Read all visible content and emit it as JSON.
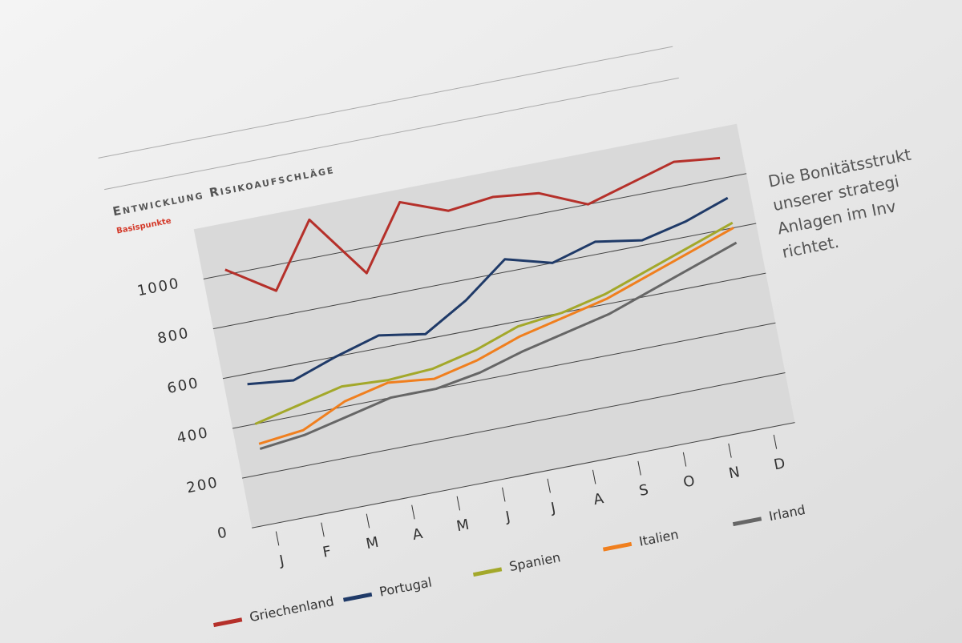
{
  "chart_data": {
    "type": "line",
    "title": "Entwicklung Risikoaufschläge",
    "subtitle": "Basispunkte",
    "categories": [
      "J",
      "F",
      "M",
      "A",
      "M",
      "J",
      "J",
      "A",
      "S",
      "O",
      "N",
      "D"
    ],
    "series": [
      {
        "name": "Griechenland",
        "color": "#b5302a",
        "values": [
          1020,
          900,
          1150,
          900,
          1150,
          1080,
          1100,
          1080,
          1000,
          1050,
          1100,
          1080
        ]
      },
      {
        "name": "Portugal",
        "color": "#1f3a68",
        "values": [
          560,
          540,
          600,
          650,
          620,
          720,
          850,
          800,
          850,
          820,
          860,
          920
        ]
      },
      {
        "name": "Spanien",
        "color": "#a3a82a",
        "values": [
          400,
          440,
          480,
          470,
          480,
          520,
          580,
          600,
          640,
          700,
          760,
          820
        ]
      },
      {
        "name": "Italien",
        "color": "#f07f1e",
        "values": [
          320,
          340,
          420,
          460,
          440,
          480,
          540,
          580,
          620,
          680,
          740,
          800
        ]
      },
      {
        "name": "Irland",
        "color": "#666666",
        "values": [
          300,
          320,
          360,
          400,
          400,
          430,
          480,
          520,
          560,
          620,
          680,
          740
        ]
      }
    ],
    "ylim": [
      0,
      1200
    ],
    "yticks": [
      0,
      200,
      400,
      600,
      800,
      1000
    ],
    "grid": true
  },
  "sidebar": {
    "lines": [
      "Die Bonitätsstrukt",
      "unserer strategi",
      "Anlagen im Inv",
      "richtet."
    ]
  }
}
